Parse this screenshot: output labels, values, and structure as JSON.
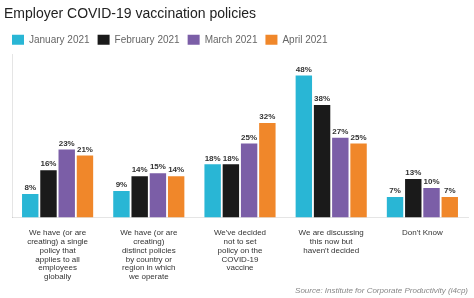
{
  "chart_data": {
    "type": "bar",
    "title": "Employer COVID-19 vaccination policies",
    "categories": [
      "We have (or are\ncreating) a single\npolicy that\napplies to all\nemployees\nglobally",
      "We have (or are\ncreating)\ndistinct policies\nby country or\nregion in which\nwe operate",
      "We've decided\nnot to set\npolicy on the\nCOVID-19\nvaccine",
      "We are discussing\nthis now but\nhaven't decided",
      "Don't Know"
    ],
    "series": [
      {
        "name": "January 2021",
        "color": "#29b6d5",
        "values": [
          8,
          9,
          18,
          48,
          7
        ],
        "value_labels": [
          "8%",
          "9%",
          "18%",
          "48%",
          "7%"
        ]
      },
      {
        "name": "February 2021",
        "color": "#1a1a1a",
        "values": [
          16,
          14,
          18,
          38,
          13
        ],
        "value_labels": [
          "16%",
          "14%",
          "18%",
          "38%",
          "13%"
        ]
      },
      {
        "name": "March 2021",
        "color": "#7b5ea7",
        "values": [
          23,
          15,
          25,
          27,
          10
        ],
        "value_labels": [
          "23%",
          "15%",
          "25%",
          "27%",
          "10%"
        ]
      },
      {
        "name": "April 2021",
        "color": "#f0872a",
        "values": [
          21,
          14,
          32,
          25,
          7
        ],
        "value_labels": [
          "21%",
          "14%",
          "32%",
          "25%",
          "7%"
        ]
      }
    ],
    "ylim": [
      0,
      55
    ],
    "grid": false,
    "legend": "top",
    "data_labels": true,
    "tick_labels": "x",
    "annotations": [
      "Source: Institute for Corporate Productivity (i4cp)"
    ]
  }
}
